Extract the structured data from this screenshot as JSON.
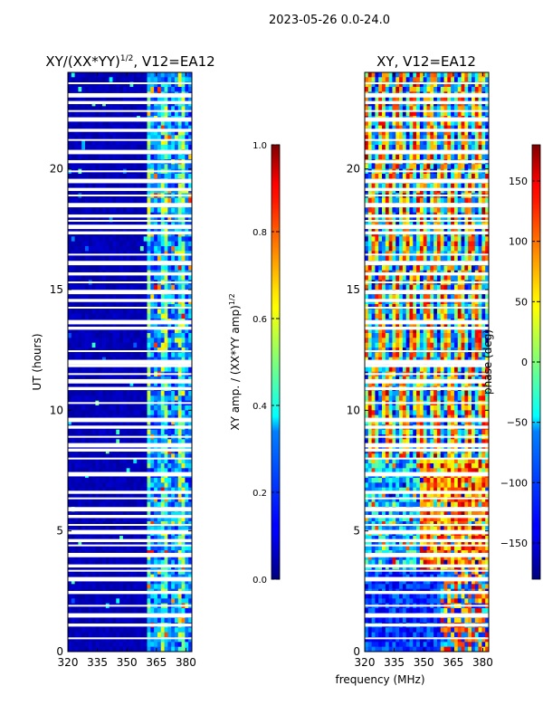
{
  "suptitle": "2023-05-26 0.0-24.0",
  "chart_data": [
    {
      "type": "heatmap",
      "title_base": "XY/(XX*YY)",
      "title_exp": "1/2",
      "title_suffix": ", V12=EA12",
      "xlabel": "",
      "ylabel": "UT (hours)",
      "xlim": [
        320,
        383
      ],
      "ylim": [
        0,
        24
      ],
      "xticks": [
        320,
        335,
        350,
        365,
        380
      ],
      "yticks": [
        0,
        5,
        10,
        15,
        20
      ],
      "colorbar": {
        "label_base": "XY amp. / (XX*YY amp)",
        "label_exp": "1/2",
        "range": [
          0.0,
          1.0
        ],
        "ticks": [
          "0.0",
          "0.2",
          "0.4",
          "0.6",
          "0.8",
          "1.0"
        ],
        "colormap": "jet"
      }
    },
    {
      "type": "heatmap",
      "title": "XY, V12=EA12",
      "xlabel": "frequency (MHz)",
      "ylabel": "",
      "xlim": [
        320,
        383
      ],
      "ylim": [
        0,
        24
      ],
      "xticks": [
        320,
        335,
        350,
        365,
        380
      ],
      "yticks": [
        0,
        5,
        10,
        15,
        20
      ],
      "colorbar": {
        "label": "phase (deg)",
        "range": [
          -180,
          180
        ],
        "ticks": [
          "−150",
          "−100",
          "−50",
          "0",
          "50",
          "100",
          "150"
        ],
        "colormap": "jet"
      }
    }
  ],
  "flagged_hours": [
    0.55,
    1.1,
    1.5,
    1.9,
    2.45,
    3.0,
    3.35,
    3.55,
    4.0,
    4.4,
    4.6,
    4.95,
    5.25,
    5.6,
    5.9,
    6.35,
    6.6,
    7.35,
    8.0,
    8.35,
    8.55,
    8.9,
    9.3,
    9.6,
    10.3,
    10.9,
    11.2,
    11.5,
    11.85,
    12.0,
    12.45,
    13.4,
    13.65,
    14.25,
    14.55,
    14.9,
    15.3,
    15.65,
    16.1,
    16.45,
    17.35,
    17.6,
    17.85,
    18.05,
    18.5,
    18.9,
    19.15,
    19.5,
    19.9,
    20.3,
    20.7,
    21.2,
    21.6,
    22.05,
    22.4,
    22.75,
    23.05,
    23.55
  ]
}
